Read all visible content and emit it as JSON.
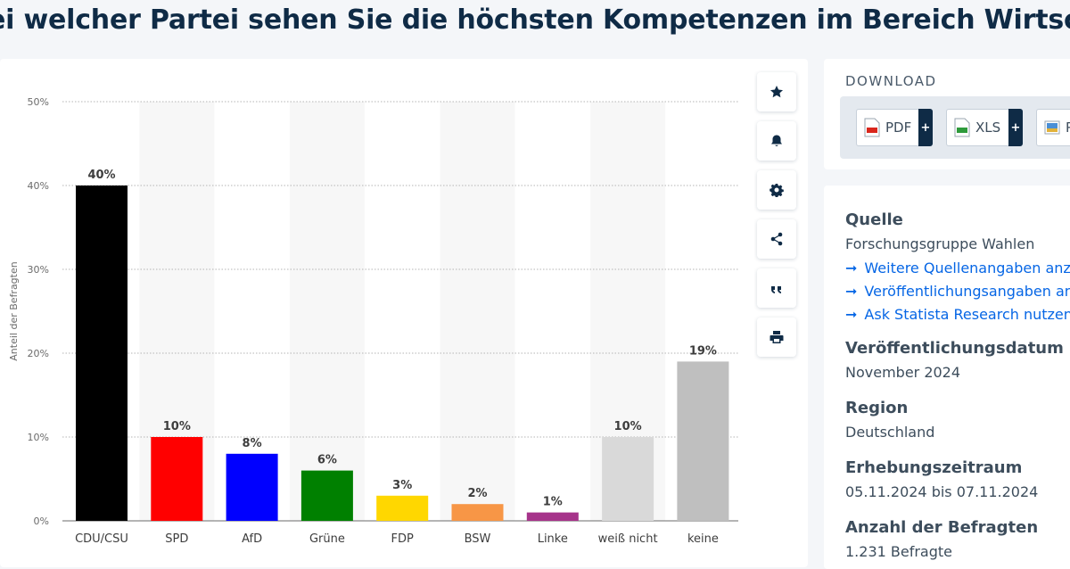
{
  "page": {
    "title": "ei welcher Partei sehen Sie die höchsten Kompetenzen im Bereich Wirtschaft?"
  },
  "chart_data": {
    "type": "bar",
    "categories": [
      "CDU/CSU",
      "SPD",
      "AfD",
      "Grüne",
      "FDP",
      "BSW",
      "Linke",
      "weiß nicht",
      "keine"
    ],
    "values": [
      40,
      10,
      8,
      6,
      3,
      2,
      1,
      10,
      19
    ],
    "data_labels": [
      "40%",
      "10%",
      "8%",
      "6%",
      "3%",
      "2%",
      "1%",
      "10%",
      "19%"
    ],
    "colors": [
      "#000000",
      "#ff0000",
      "#0000ff",
      "#008000",
      "#ffd700",
      "#f79646",
      "#a6338a",
      "#d9d9d9",
      "#bfbfbf"
    ],
    "ylabel": "Anteil der Befragten",
    "ylim": [
      0,
      50
    ],
    "yticks": [
      0,
      10,
      20,
      30,
      40,
      50
    ],
    "ytick_labels": [
      "0%",
      "10%",
      "20%",
      "30%",
      "40%",
      "50%"
    ],
    "grid": true,
    "legend": "none"
  },
  "toolbar": {
    "buttons": [
      {
        "name": "favorite-button",
        "icon": "star-icon"
      },
      {
        "name": "notification-button",
        "icon": "bell-icon"
      },
      {
        "name": "settings-button",
        "icon": "gear-icon"
      },
      {
        "name": "share-button",
        "icon": "share-icon"
      },
      {
        "name": "cite-button",
        "icon": "quote-icon"
      },
      {
        "name": "print-button",
        "icon": "printer-icon"
      }
    ]
  },
  "download": {
    "title": "DOWNLOAD",
    "pdf_label": "PDF",
    "xls_label": "XLS",
    "png_label": "P",
    "plus": "+"
  },
  "info": {
    "source_heading": "Quelle",
    "source_text": "Forschungsgruppe Wahlen",
    "links": [
      "Weitere Quellenangaben anzei",
      "Veröffentlichungsangaben anze",
      "Ask Statista Research nutzen"
    ],
    "arrow": "➞",
    "pubdate_heading": "Veröffentlichungsdatum",
    "pubdate_text": "November 2024",
    "region_heading": "Region",
    "region_text": "Deutschland",
    "period_heading": "Erhebungszeitraum",
    "period_text": "05.11.2024 bis 07.11.2024",
    "respondents_heading": "Anzahl der Befragten",
    "respondents_text": "1.231 Befragte"
  },
  "colors": {
    "accent": "#0666e5",
    "dark": "#0f2b46"
  }
}
